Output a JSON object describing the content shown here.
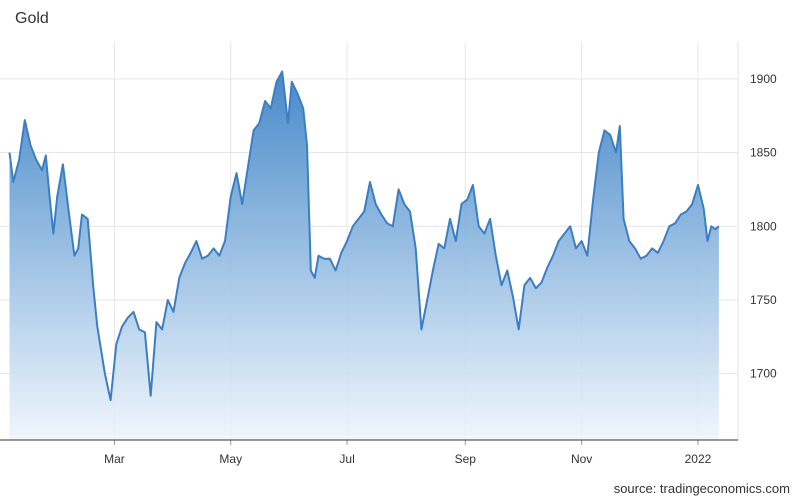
{
  "chart_data": {
    "type": "area",
    "title": "Gold",
    "source": "source: tradingeconomics.com",
    "xlabel": "",
    "ylabel": "",
    "x_ticks": [
      "Mar",
      "May",
      "Jul",
      "Sep",
      "Nov",
      "2022"
    ],
    "x_tick_dates": [
      "2021-03-01",
      "2021-05-01",
      "2021-07-01",
      "2021-09-01",
      "2021-11-01",
      "2022-01-01"
    ],
    "y_ticks": [
      1700,
      1750,
      1800,
      1850,
      1900
    ],
    "ylim": [
      1655,
      1925
    ],
    "grid": true,
    "y_axis_side": "right",
    "colors": {
      "line": "#3a7fc4",
      "fill_top": "#3c83c7",
      "fill_bottom": "#eef5fc",
      "grid": "#e6e6e6"
    },
    "series": [
      {
        "points": [
          [
            "2021-01-05",
            1850
          ],
          [
            "2021-01-07",
            1830
          ],
          [
            "2021-01-10",
            1845
          ],
          [
            "2021-01-13",
            1872
          ],
          [
            "2021-01-16",
            1855
          ],
          [
            "2021-01-19",
            1845
          ],
          [
            "2021-01-22",
            1838
          ],
          [
            "2021-01-24",
            1848
          ],
          [
            "2021-01-26",
            1820
          ],
          [
            "2021-01-28",
            1795
          ],
          [
            "2021-01-30",
            1820
          ],
          [
            "2021-02-02",
            1842
          ],
          [
            "2021-02-05",
            1810
          ],
          [
            "2021-02-08",
            1780
          ],
          [
            "2021-02-10",
            1785
          ],
          [
            "2021-02-12",
            1808
          ],
          [
            "2021-02-15",
            1805
          ],
          [
            "2021-02-18",
            1758
          ],
          [
            "2021-02-20",
            1732
          ],
          [
            "2021-02-24",
            1700
          ],
          [
            "2021-02-27",
            1682
          ],
          [
            "2021-03-02",
            1720
          ],
          [
            "2021-03-05",
            1732
          ],
          [
            "2021-03-08",
            1738
          ],
          [
            "2021-03-11",
            1742
          ],
          [
            "2021-03-14",
            1730
          ],
          [
            "2021-03-17",
            1728
          ],
          [
            "2021-03-20",
            1685
          ],
          [
            "2021-03-23",
            1735
          ],
          [
            "2021-03-26",
            1730
          ],
          [
            "2021-03-29",
            1750
          ],
          [
            "2021-04-01",
            1742
          ],
          [
            "2021-04-04",
            1765
          ],
          [
            "2021-04-07",
            1775
          ],
          [
            "2021-04-10",
            1782
          ],
          [
            "2021-04-13",
            1790
          ],
          [
            "2021-04-16",
            1778
          ],
          [
            "2021-04-19",
            1780
          ],
          [
            "2021-04-22",
            1785
          ],
          [
            "2021-04-25",
            1780
          ],
          [
            "2021-04-28",
            1790
          ],
          [
            "2021-05-01",
            1820
          ],
          [
            "2021-05-04",
            1836
          ],
          [
            "2021-05-07",
            1815
          ],
          [
            "2021-05-10",
            1840
          ],
          [
            "2021-05-13",
            1865
          ],
          [
            "2021-05-16",
            1870
          ],
          [
            "2021-05-19",
            1885
          ],
          [
            "2021-05-22",
            1880
          ],
          [
            "2021-05-25",
            1898
          ],
          [
            "2021-05-28",
            1905
          ],
          [
            "2021-05-31",
            1870
          ],
          [
            "2021-06-02",
            1898
          ],
          [
            "2021-06-05",
            1890
          ],
          [
            "2021-06-08",
            1880
          ],
          [
            "2021-06-10",
            1855
          ],
          [
            "2021-06-12",
            1770
          ],
          [
            "2021-06-14",
            1765
          ],
          [
            "2021-06-16",
            1780
          ],
          [
            "2021-06-19",
            1778
          ],
          [
            "2021-06-22",
            1778
          ],
          [
            "2021-06-25",
            1770
          ],
          [
            "2021-06-28",
            1782
          ],
          [
            "2021-07-01",
            1790
          ],
          [
            "2021-07-04",
            1800
          ],
          [
            "2021-07-07",
            1805
          ],
          [
            "2021-07-10",
            1810
          ],
          [
            "2021-07-13",
            1830
          ],
          [
            "2021-07-16",
            1815
          ],
          [
            "2021-07-19",
            1808
          ],
          [
            "2021-07-22",
            1802
          ],
          [
            "2021-07-25",
            1800
          ],
          [
            "2021-07-28",
            1825
          ],
          [
            "2021-07-31",
            1815
          ],
          [
            "2021-08-03",
            1810
          ],
          [
            "2021-08-06",
            1785
          ],
          [
            "2021-08-09",
            1730
          ],
          [
            "2021-08-12",
            1750
          ],
          [
            "2021-08-15",
            1770
          ],
          [
            "2021-08-18",
            1788
          ],
          [
            "2021-08-21",
            1785
          ],
          [
            "2021-08-24",
            1805
          ],
          [
            "2021-08-27",
            1790
          ],
          [
            "2021-08-30",
            1815
          ],
          [
            "2021-09-02",
            1818
          ],
          [
            "2021-09-05",
            1828
          ],
          [
            "2021-09-08",
            1800
          ],
          [
            "2021-09-11",
            1795
          ],
          [
            "2021-09-14",
            1805
          ],
          [
            "2021-09-17",
            1780
          ],
          [
            "2021-09-20",
            1760
          ],
          [
            "2021-09-23",
            1770
          ],
          [
            "2021-09-26",
            1752
          ],
          [
            "2021-09-29",
            1730
          ],
          [
            "2021-10-02",
            1760
          ],
          [
            "2021-10-05",
            1765
          ],
          [
            "2021-10-08",
            1758
          ],
          [
            "2021-10-11",
            1762
          ],
          [
            "2021-10-14",
            1772
          ],
          [
            "2021-10-17",
            1780
          ],
          [
            "2021-10-20",
            1790
          ],
          [
            "2021-10-23",
            1795
          ],
          [
            "2021-10-26",
            1800
          ],
          [
            "2021-10-29",
            1785
          ],
          [
            "2021-11-01",
            1790
          ],
          [
            "2021-11-04",
            1780
          ],
          [
            "2021-11-07",
            1818
          ],
          [
            "2021-11-10",
            1850
          ],
          [
            "2021-11-13",
            1865
          ],
          [
            "2021-11-16",
            1862
          ],
          [
            "2021-11-19",
            1850
          ],
          [
            "2021-11-21",
            1868
          ],
          [
            "2021-11-23",
            1805
          ],
          [
            "2021-11-26",
            1790
          ],
          [
            "2021-11-29",
            1785
          ],
          [
            "2021-12-02",
            1778
          ],
          [
            "2021-12-05",
            1780
          ],
          [
            "2021-12-08",
            1785
          ],
          [
            "2021-12-11",
            1782
          ],
          [
            "2021-12-14",
            1790
          ],
          [
            "2021-12-17",
            1800
          ],
          [
            "2021-12-20",
            1802
          ],
          [
            "2021-12-23",
            1808
          ],
          [
            "2021-12-26",
            1810
          ],
          [
            "2021-12-29",
            1815
          ],
          [
            "2022-01-01",
            1828
          ],
          [
            "2022-01-04",
            1812
          ],
          [
            "2022-01-06",
            1790
          ],
          [
            "2022-01-08",
            1800
          ],
          [
            "2022-01-10",
            1798
          ],
          [
            "2022-01-12",
            1800
          ]
        ]
      }
    ]
  }
}
